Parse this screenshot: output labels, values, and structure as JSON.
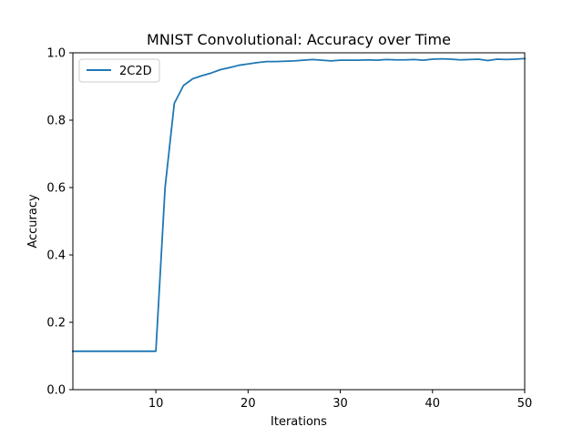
{
  "chart_data": {
    "type": "line",
    "title": "MNIST Convolutional: Accuracy over Time",
    "xlabel": "Iterations",
    "ylabel": "Accuracy",
    "xlim": [
      1,
      50
    ],
    "ylim": [
      0.0,
      1.0
    ],
    "xticks": [
      10,
      20,
      30,
      40,
      50
    ],
    "xtick_labels": [
      "10",
      "20",
      "30",
      "40",
      "50"
    ],
    "yticks": [
      0.0,
      0.2,
      0.4,
      0.6,
      0.8,
      1.0
    ],
    "ytick_labels": [
      "0.0",
      "0.2",
      "0.4",
      "0.6",
      "0.8",
      "1.0"
    ],
    "grid": false,
    "legend_position": "top-left",
    "series": [
      {
        "name": "2C2D",
        "color": "#1f77b4",
        "x": [
          1,
          2,
          3,
          4,
          5,
          6,
          7,
          8,
          9,
          10,
          11,
          12,
          13,
          14,
          15,
          16,
          17,
          18,
          19,
          20,
          21,
          22,
          23,
          24,
          25,
          26,
          27,
          28,
          29,
          30,
          31,
          32,
          33,
          34,
          35,
          36,
          37,
          38,
          39,
          40,
          41,
          42,
          43,
          44,
          45,
          46,
          47,
          48,
          49,
          50
        ],
        "y": [
          0.114,
          0.114,
          0.114,
          0.114,
          0.114,
          0.114,
          0.114,
          0.114,
          0.114,
          0.114,
          0.6,
          0.85,
          0.903,
          0.923,
          0.932,
          0.94,
          0.95,
          0.956,
          0.963,
          0.967,
          0.971,
          0.974,
          0.974,
          0.975,
          0.976,
          0.978,
          0.98,
          0.978,
          0.976,
          0.978,
          0.978,
          0.978,
          0.979,
          0.978,
          0.98,
          0.979,
          0.979,
          0.98,
          0.978,
          0.981,
          0.982,
          0.981,
          0.979,
          0.98,
          0.981,
          0.977,
          0.981,
          0.98,
          0.981,
          0.983
        ]
      }
    ]
  }
}
